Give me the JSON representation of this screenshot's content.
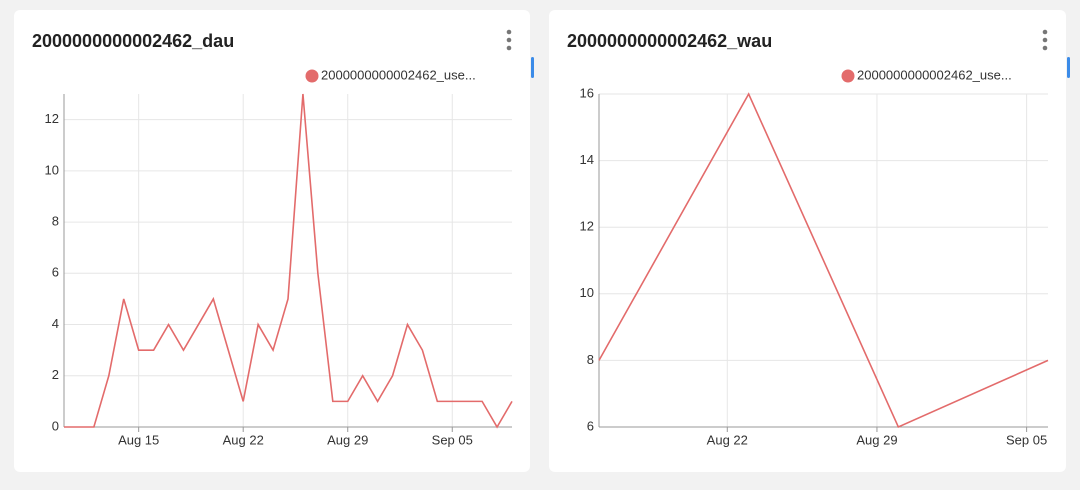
{
  "chart_data": [
    {
      "type": "line",
      "title": "2000000000002462_dau",
      "x": [
        "Aug 10",
        "Aug 11",
        "Aug 12",
        "Aug 13",
        "Aug 14",
        "Aug 15",
        "Aug 16",
        "Aug 17",
        "Aug 18",
        "Aug 19",
        "Aug 20",
        "Aug 21",
        "Aug 22",
        "Aug 23",
        "Aug 24",
        "Aug 25",
        "Aug 26",
        "Aug 27",
        "Aug 28",
        "Aug 29",
        "Aug 30",
        "Aug 31",
        "Sep 01",
        "Sep 02",
        "Sep 03",
        "Sep 04",
        "Sep 05",
        "Sep 06",
        "Sep 07",
        "Sep 08",
        "Sep 09"
      ],
      "series": [
        {
          "name": "2000000000002462_use...",
          "color": "#e36b6b",
          "values": [
            0,
            0,
            0,
            2,
            5,
            3,
            3,
            4,
            3,
            4,
            5,
            3,
            1,
            4,
            3,
            5,
            13,
            6,
            1,
            1,
            2,
            1,
            2,
            4,
            3,
            1,
            1,
            1,
            1,
            0,
            1
          ]
        }
      ],
      "xlim": [
        "Aug 10",
        "Sep 09"
      ],
      "xticks": [
        "Aug 15",
        "Aug 22",
        "Aug 29",
        "Sep 05"
      ],
      "ylim": [
        0,
        13
      ],
      "yticks": [
        0,
        2,
        4,
        6,
        8,
        10,
        12
      ],
      "grid": true,
      "legend": "top-right"
    },
    {
      "type": "line",
      "title": "2000000000002462_wau",
      "x": [
        "Aug 16",
        "Aug 23",
        "Aug 30",
        "Sep 06"
      ],
      "series": [
        {
          "name": "2000000000002462_use...",
          "color": "#e36b6b",
          "values": [
            8,
            16,
            6,
            8
          ]
        }
      ],
      "xlim": [
        "Aug 16",
        "Sep 06"
      ],
      "xticks": [
        "Aug 22",
        "Aug 29",
        "Sep 05"
      ],
      "ylim": [
        6,
        16
      ],
      "yticks": [
        6,
        8,
        10,
        12,
        14,
        16
      ],
      "grid": true,
      "legend": "top-right"
    }
  ]
}
